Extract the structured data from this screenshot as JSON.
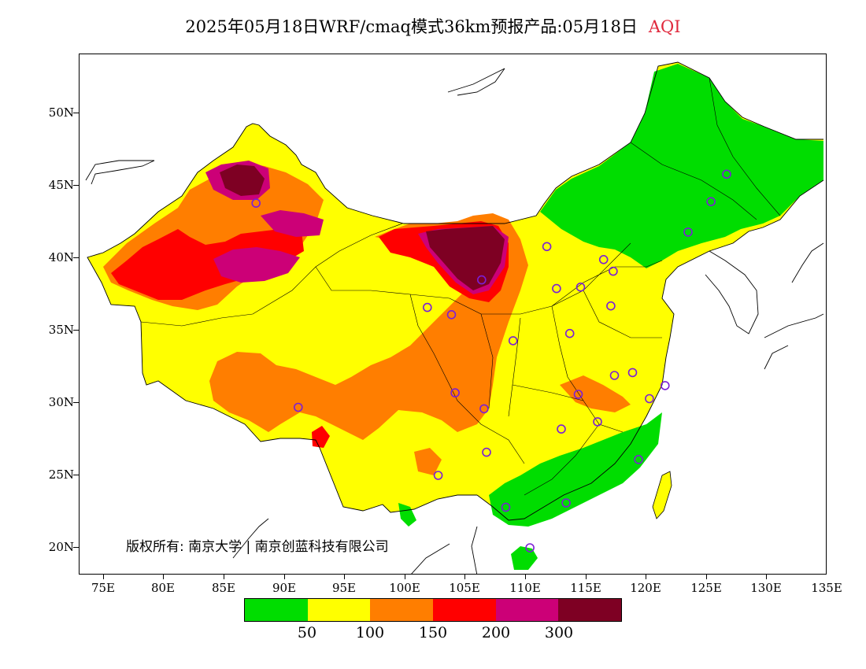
{
  "title": {
    "main": "2025年05月18日WRF/cmaq模式36km预报产品:05月18日",
    "variable": "AQI"
  },
  "axes": {
    "lat_labels": [
      "50N",
      "45N",
      "40N",
      "35N",
      "30N",
      "25N",
      "20N"
    ],
    "lon_labels": [
      "75E",
      "80E",
      "85E",
      "90E",
      "95E",
      "100E",
      "105E",
      "110E",
      "115E",
      "120E",
      "125E",
      "130E",
      "135E"
    ]
  },
  "copyright": "版权所有: 南京大学 | 南京创蓝科技有限公司",
  "legend": {
    "colors": [
      "#00dd00",
      "#ffff00",
      "#ff7e00",
      "#ff0000",
      "#cc0077",
      "#7e0023"
    ],
    "labels": [
      "50",
      "100",
      "150",
      "200",
      "300"
    ]
  },
  "stations": [
    {
      "lon": 87.6,
      "lat": 43.8
    },
    {
      "lon": 91.1,
      "lat": 29.7
    },
    {
      "lon": 101.8,
      "lat": 36.6
    },
    {
      "lon": 103.8,
      "lat": 36.1
    },
    {
      "lon": 106.3,
      "lat": 38.5
    },
    {
      "lon": 111.7,
      "lat": 40.8
    },
    {
      "lon": 112.5,
      "lat": 37.9
    },
    {
      "lon": 114.5,
      "lat": 38.0
    },
    {
      "lon": 116.4,
      "lat": 39.9
    },
    {
      "lon": 117.2,
      "lat": 39.1
    },
    {
      "lon": 117.0,
      "lat": 36.7
    },
    {
      "lon": 113.6,
      "lat": 34.8
    },
    {
      "lon": 108.9,
      "lat": 34.3
    },
    {
      "lon": 104.1,
      "lat": 30.7
    },
    {
      "lon": 106.5,
      "lat": 29.6
    },
    {
      "lon": 106.7,
      "lat": 26.6
    },
    {
      "lon": 102.7,
      "lat": 25.0
    },
    {
      "lon": 108.3,
      "lat": 22.8
    },
    {
      "lon": 113.3,
      "lat": 23.1
    },
    {
      "lon": 110.3,
      "lat": 20.0
    },
    {
      "lon": 112.9,
      "lat": 28.2
    },
    {
      "lon": 114.3,
      "lat": 30.6
    },
    {
      "lon": 115.9,
      "lat": 28.7
    },
    {
      "lon": 117.3,
      "lat": 31.9
    },
    {
      "lon": 118.8,
      "lat": 32.1
    },
    {
      "lon": 120.2,
      "lat": 30.3
    },
    {
      "lon": 121.5,
      "lat": 31.2
    },
    {
      "lon": 119.3,
      "lat": 26.1
    },
    {
      "lon": 123.4,
      "lat": 41.8
    },
    {
      "lon": 125.3,
      "lat": 43.9
    },
    {
      "lon": 126.6,
      "lat": 45.8
    }
  ]
}
